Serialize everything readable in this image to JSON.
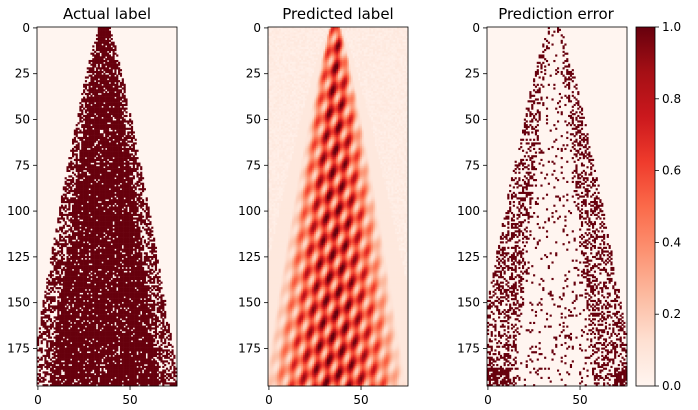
{
  "figure": {
    "panels": [
      {
        "title": "Actual label",
        "x_ticks": [
          "0",
          "50"
        ],
        "y_ticks": [
          "0",
          "25",
          "50",
          "75",
          "100",
          "125",
          "150",
          "175"
        ]
      },
      {
        "title": "Predicted label",
        "x_ticks": [
          "0",
          "50"
        ],
        "y_ticks": [
          "0",
          "25",
          "50",
          "75",
          "100",
          "125",
          "150",
          "175"
        ]
      },
      {
        "title": "Prediction error",
        "x_ticks": [
          "0",
          "50"
        ],
        "y_ticks": [
          "0",
          "25",
          "50",
          "75",
          "100",
          "125",
          "150",
          "175"
        ]
      }
    ],
    "colorbar": {
      "ticks": [
        "0.0",
        "0.2",
        "0.4",
        "0.6",
        "0.8",
        "1.0"
      ]
    }
  },
  "chart_data": [
    {
      "type": "heatmap",
      "title": "Actual label",
      "xlim": [
        0,
        76
      ],
      "ylim": [
        196,
        0
      ],
      "x_ticks": [
        0,
        50
      ],
      "y_ticks": [
        0,
        25,
        50,
        75,
        100,
        125,
        150,
        175
      ],
      "colormap": "Reds",
      "value_range": [
        0,
        1
      ],
      "pattern": "binary tree-shaped mask, narrow at top (~x 35) widening toward bottom (~x 0-76)"
    },
    {
      "type": "heatmap",
      "title": "Predicted label",
      "xlim": [
        0,
        76
      ],
      "ylim": [
        196,
        0
      ],
      "x_ticks": [
        0,
        50
      ],
      "y_ticks": [
        0,
        25,
        50,
        75,
        100,
        125,
        150,
        175
      ],
      "colormap": "Reds",
      "value_range": [
        0,
        1
      ],
      "pattern": "continuous predicted probability, smooth tree-shaped plume"
    },
    {
      "type": "heatmap",
      "title": "Prediction error",
      "xlim": [
        0,
        76
      ],
      "ylim": [
        196,
        0
      ],
      "x_ticks": [
        0,
        50
      ],
      "y_ticks": [
        0,
        25,
        50,
        75,
        100,
        125,
        150,
        175
      ],
      "colormap": "Reds",
      "value_range": [
        0,
        1
      ],
      "pattern": "sparse binary error pixels along the plume boundary, denser near bottom edge"
    }
  ],
  "colors": {
    "low": "#fff5f0",
    "mid": "#fb6a4a",
    "high": "#67000d"
  }
}
